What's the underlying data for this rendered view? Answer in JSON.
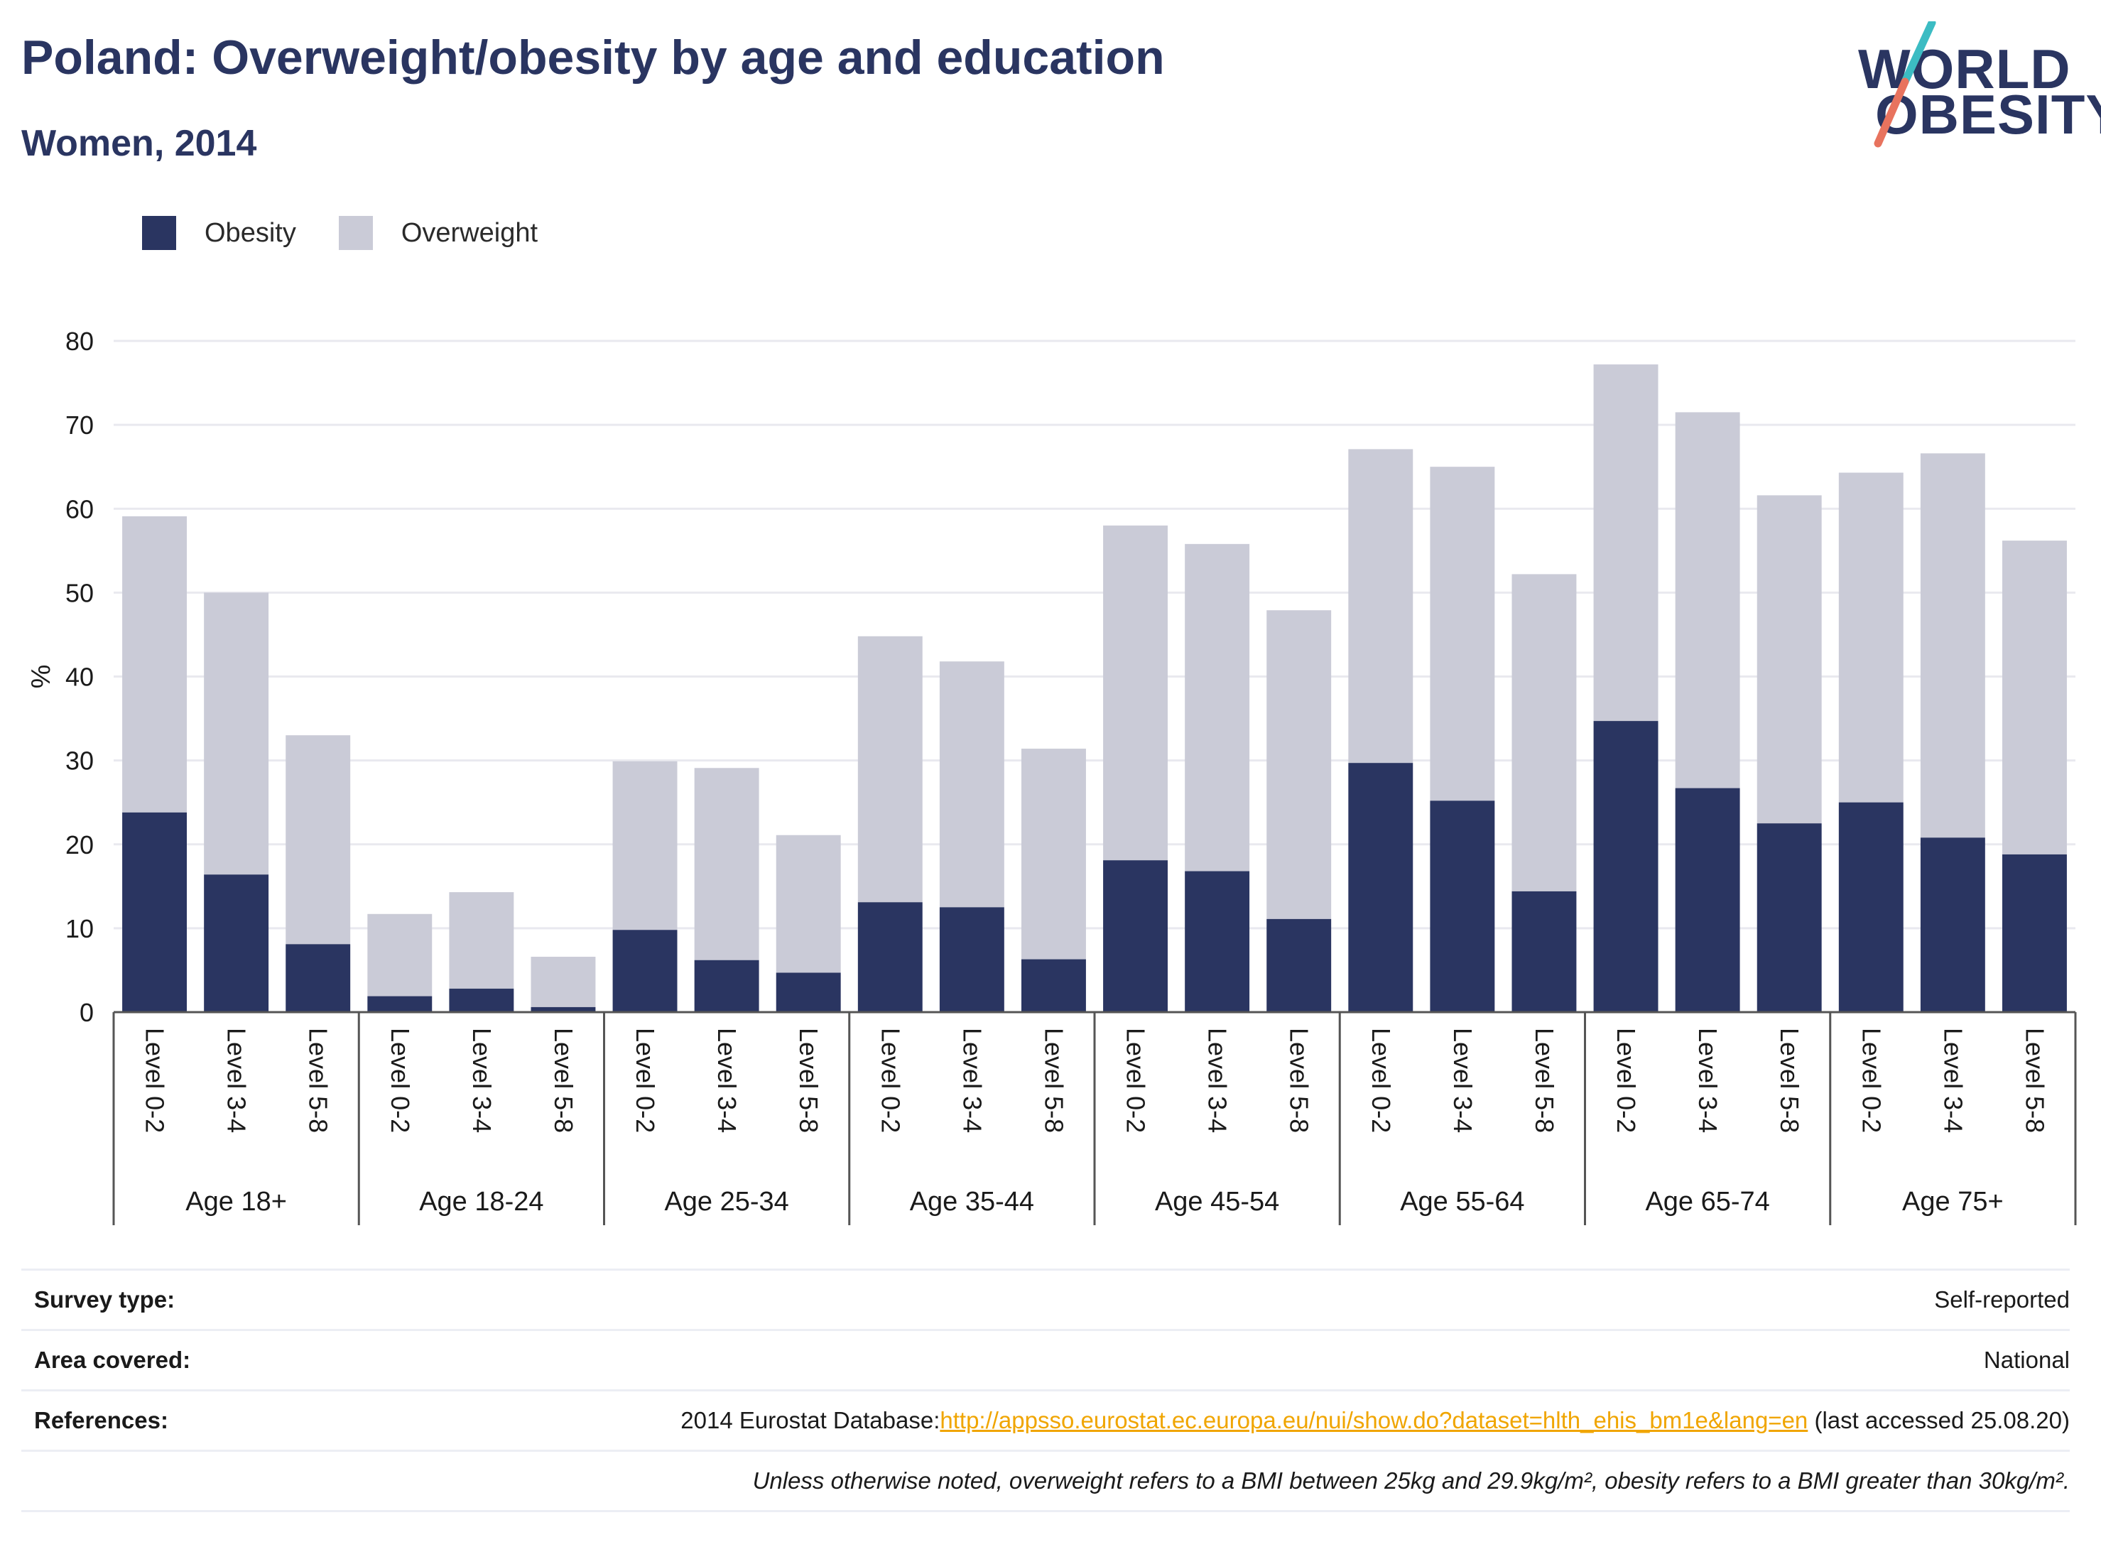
{
  "title": "Poland: Overweight/obesity by age and education",
  "subtitle": "Women, 2014",
  "logo": {
    "line1": "WORLD",
    "line2": "OBESITY"
  },
  "colors": {
    "obesity": "#2a3561",
    "overweight": "#cacbd7",
    "link": "#f0a500",
    "logo_teal": "#3cbcc3",
    "logo_coral": "#e8735e"
  },
  "legend": [
    {
      "label": "Obesity",
      "color": "#2a3561"
    },
    {
      "label": "Overweight",
      "color": "#cacbd7"
    }
  ],
  "chart_data": {
    "type": "bar",
    "stacked": true,
    "ylabel": "%",
    "ylim": [
      0,
      80
    ],
    "yticks": [
      0,
      10,
      20,
      30,
      40,
      50,
      60,
      70,
      80
    ],
    "grid": true,
    "legend_position": "top-left",
    "groups": [
      "Age 18+",
      "Age 18-24",
      "Age 25-34",
      "Age 35-44",
      "Age 45-54",
      "Age 55-64",
      "Age 65-74",
      "Age 75+"
    ],
    "levels": [
      "Level 0-2",
      "Level 3-4",
      "Level 5-8"
    ],
    "series": [
      {
        "name": "Obesity",
        "values": [
          23.8,
          16.4,
          8.1,
          1.9,
          2.8,
          0.6,
          9.8,
          6.2,
          4.7,
          13.1,
          12.5,
          6.3,
          18.1,
          16.8,
          11.1,
          29.7,
          25.2,
          14.4,
          34.7,
          26.7,
          22.5,
          25.0,
          20.8,
          18.8
        ]
      },
      {
        "name": "Overweight",
        "values": [
          35.3,
          33.6,
          24.9,
          9.8,
          11.5,
          6.0,
          20.1,
          22.9,
          16.4,
          31.7,
          29.3,
          25.1,
          39.9,
          39.0,
          36.8,
          37.4,
          39.8,
          37.8,
          42.5,
          44.8,
          39.1,
          39.3,
          45.8,
          37.4
        ]
      }
    ]
  },
  "info": {
    "survey_type": {
      "key": "Survey type:",
      "value": "Self-reported"
    },
    "area_covered": {
      "key": "Area covered:",
      "value": "National"
    },
    "references": {
      "key": "References:",
      "prefix": "2014 Eurostat Database:",
      "link": "http://appsso.eurostat.ec.europa.eu/nui/show.do?dataset=hlth_ehis_bm1e&lang=en",
      "suffix": " (last accessed 25.08.20)"
    },
    "note": "Unless otherwise noted, overweight refers to a BMI between 25kg and 29.9kg/m², obesity refers to a BMI greater than 30kg/m²."
  }
}
